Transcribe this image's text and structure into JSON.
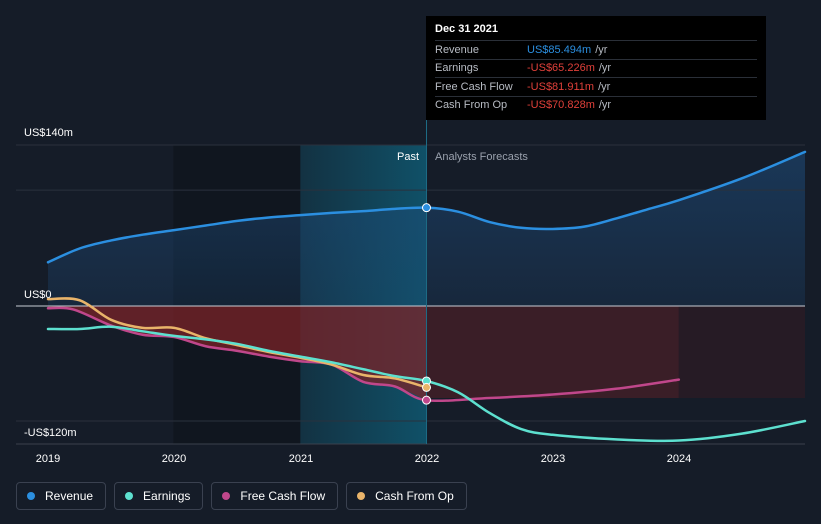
{
  "chart_data": {
    "type": "line",
    "currency": "US$",
    "y_axis_labels": [
      "US$140m",
      "US$0",
      "-US$120m"
    ],
    "ylim": [
      -120,
      140
    ],
    "xlim": [
      2019,
      2025
    ],
    "x_ticks": [
      "2019",
      "2020",
      "2021",
      "2022",
      "2023",
      "2024"
    ],
    "region_labels": {
      "past": "Past",
      "forecast": "Analysts Forecasts"
    },
    "past_end_x": 2022,
    "highlight_start_x": 2021,
    "series": [
      {
        "name": "Revenue",
        "color": "#2b8fe0",
        "points": [
          [
            2019,
            38
          ],
          [
            2019.25,
            50
          ],
          [
            2019.5,
            57
          ],
          [
            2019.75,
            62
          ],
          [
            2020,
            66
          ],
          [
            2020.25,
            70
          ],
          [
            2020.5,
            74
          ],
          [
            2020.75,
            77
          ],
          [
            2021,
            79
          ],
          [
            2021.25,
            81
          ],
          [
            2021.5,
            82.5
          ],
          [
            2021.75,
            84.5
          ],
          [
            2022,
            85.5
          ],
          [
            2022.25,
            82
          ],
          [
            2022.5,
            73
          ],
          [
            2022.75,
            68
          ],
          [
            2023,
            67
          ],
          [
            2023.25,
            69
          ],
          [
            2023.5,
            76
          ],
          [
            2023.75,
            84
          ],
          [
            2024,
            92
          ],
          [
            2024.5,
            111
          ],
          [
            2025,
            134
          ]
        ]
      },
      {
        "name": "Earnings",
        "color": "#5de0cf",
        "points": [
          [
            2019,
            -20
          ],
          [
            2019.25,
            -20
          ],
          [
            2019.5,
            -18
          ],
          [
            2019.75,
            -22
          ],
          [
            2020,
            -26
          ],
          [
            2020.25,
            -29
          ],
          [
            2020.5,
            -33
          ],
          [
            2020.75,
            -39
          ],
          [
            2021,
            -44
          ],
          [
            2021.25,
            -49
          ],
          [
            2021.5,
            -55
          ],
          [
            2021.75,
            -61
          ],
          [
            2022,
            -65.2
          ],
          [
            2022.25,
            -75
          ],
          [
            2022.5,
            -93
          ],
          [
            2022.75,
            -107
          ],
          [
            2023,
            -112
          ],
          [
            2023.5,
            -116
          ],
          [
            2024,
            -117
          ],
          [
            2024.5,
            -111
          ],
          [
            2025,
            -100
          ]
        ]
      },
      {
        "name": "Free Cash Flow",
        "color": "#c0478b",
        "points": [
          [
            2019,
            -2
          ],
          [
            2019.2,
            -3
          ],
          [
            2019.5,
            -17
          ],
          [
            2019.75,
            -25
          ],
          [
            2020,
            -27
          ],
          [
            2020.25,
            -35
          ],
          [
            2020.5,
            -39
          ],
          [
            2020.75,
            -44
          ],
          [
            2021,
            -48
          ],
          [
            2021.25,
            -51
          ],
          [
            2021.5,
            -66
          ],
          [
            2021.75,
            -70
          ],
          [
            2022,
            -81.9
          ],
          [
            2022.5,
            -80
          ],
          [
            2023,
            -77
          ],
          [
            2023.5,
            -72
          ],
          [
            2024,
            -64
          ]
        ]
      },
      {
        "name": "Cash From Op",
        "color": "#e9b46a",
        "points": [
          [
            2019,
            6
          ],
          [
            2019.25,
            5
          ],
          [
            2019.5,
            -12
          ],
          [
            2019.75,
            -19
          ],
          [
            2020,
            -19
          ],
          [
            2020.25,
            -28
          ],
          [
            2020.5,
            -34
          ],
          [
            2020.75,
            -40
          ],
          [
            2021,
            -45
          ],
          [
            2021.25,
            -51
          ],
          [
            2021.5,
            -60
          ],
          [
            2021.75,
            -63
          ],
          [
            2022,
            -70.8
          ]
        ]
      }
    ]
  },
  "tooltip": {
    "date": "Dec 31 2021",
    "unit": "/yr",
    "rows": [
      {
        "label": "Revenue",
        "value": "US$85.494m",
        "color": "#2b8fe0"
      },
      {
        "label": "Earnings",
        "value": "-US$65.226m",
        "color": "#e0403a"
      },
      {
        "label": "Free Cash Flow",
        "value": "-US$81.911m",
        "color": "#e0403a"
      },
      {
        "label": "Cash From Op",
        "value": "-US$70.828m",
        "color": "#e0403a"
      }
    ]
  },
  "legend": [
    {
      "label": "Revenue",
      "color": "#2b8fe0"
    },
    {
      "label": "Earnings",
      "color": "#5de0cf"
    },
    {
      "label": "Free Cash Flow",
      "color": "#c0478b"
    },
    {
      "label": "Cash From Op",
      "color": "#e9b46a"
    }
  ]
}
